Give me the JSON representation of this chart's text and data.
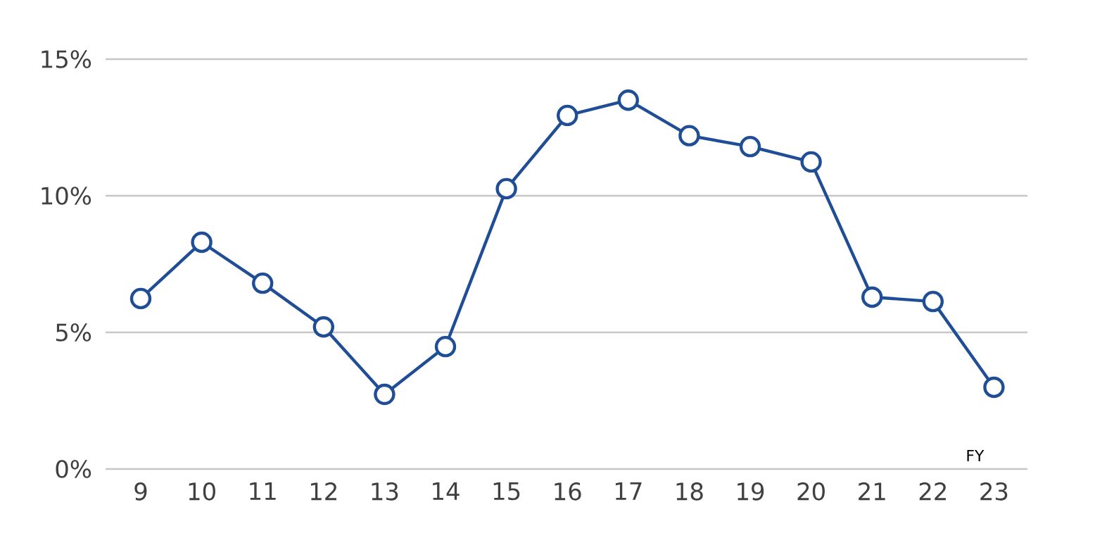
{
  "chart_data": {
    "type": "line",
    "xlabel": "FY",
    "categories": [
      "9",
      "10",
      "11",
      "12",
      "13",
      "14",
      "15",
      "16",
      "17",
      "18",
      "19",
      "20",
      "21",
      "22",
      "23"
    ],
    "series": [
      {
        "color": "#1f4e96",
        "values": [
          6.24,
          8.3,
          6.8,
          5.2,
          2.73,
          4.48,
          10.26,
          12.94,
          13.5,
          12.2,
          11.8,
          11.24,
          6.29,
          6.13,
          2.99
        ]
      }
    ],
    "ylim": [
      0,
      15
    ],
    "yticks": [
      {
        "value": 0,
        "label": "0%"
      },
      {
        "value": 5,
        "label": "5%"
      },
      {
        "value": 10,
        "label": "10%"
      },
      {
        "value": 15,
        "label": "15%"
      }
    ],
    "grid": "y",
    "marker": "circle",
    "line_style": "solid"
  }
}
